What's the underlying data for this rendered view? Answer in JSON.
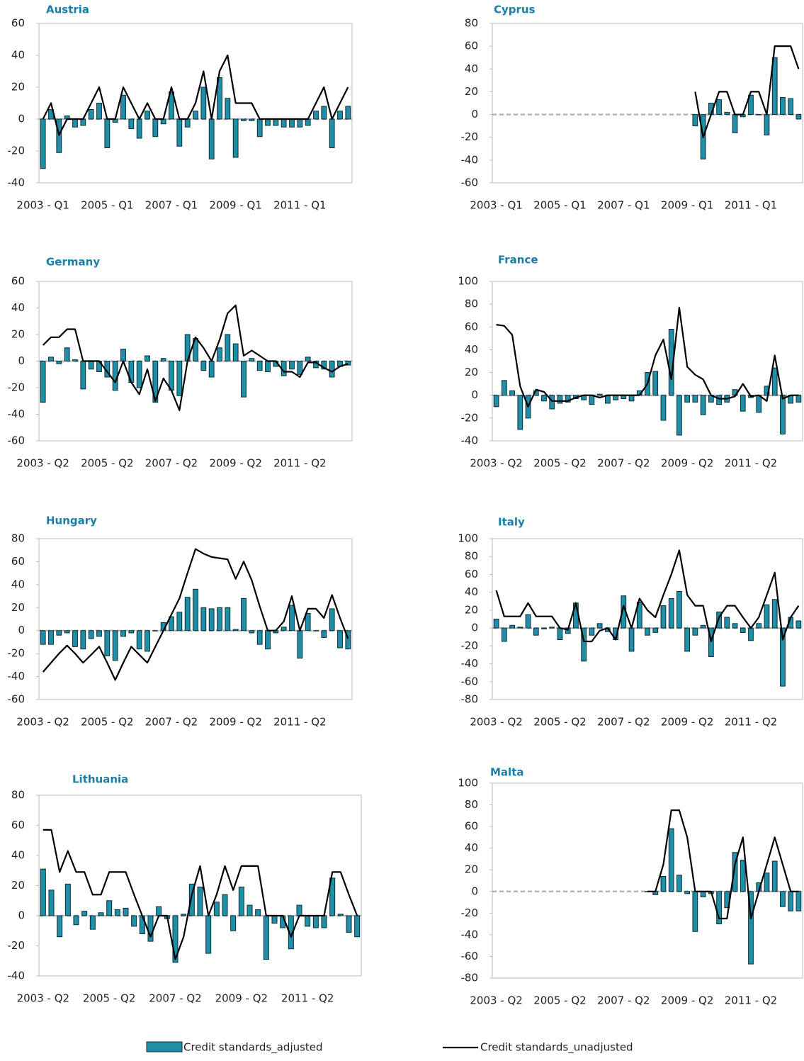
{
  "chart_data": [
    {
      "type": "bar-line",
      "title": "Austria",
      "categories": [
        "2003 - Q1",
        null,
        null,
        null,
        null,
        null,
        null,
        null,
        "2005 - Q1",
        null,
        null,
        null,
        null,
        null,
        null,
        null,
        "2007 - Q1",
        null,
        null,
        null,
        null,
        null,
        null,
        null,
        "2009 - Q1",
        null,
        null,
        null,
        null,
        null,
        null,
        null,
        "2011 - Q1",
        null,
        null,
        null,
        null,
        null,
        null
      ],
      "ylim": [
        -40,
        60
      ],
      "yticks": [
        -40,
        -20,
        0,
        20,
        40,
        60
      ],
      "series": [
        {
          "type": "bar",
          "color": "#1f8fa8",
          "values": [
            -31,
            6,
            -21,
            2,
            -5,
            -4,
            6,
            10,
            -18,
            -2,
            15,
            -6,
            -12,
            5,
            -11,
            -3,
            17,
            -17,
            -5,
            5,
            20,
            -25,
            26,
            13,
            -24,
            -1,
            -1,
            -11,
            -4,
            -4,
            -5,
            -5,
            -5,
            -4,
            5,
            8,
            -18,
            5,
            8
          ]
        },
        {
          "type": "line",
          "color": "#000000",
          "values": [
            0,
            10,
            -10,
            0,
            0,
            0,
            10,
            20,
            0,
            0,
            20,
            10,
            0,
            10,
            0,
            0,
            20,
            0,
            0,
            10,
            30,
            0,
            30,
            40,
            10,
            10,
            10,
            0,
            0,
            0,
            0,
            0,
            0,
            0,
            10,
            20,
            0,
            10,
            20
          ]
        }
      ]
    },
    {
      "type": "bar-line",
      "title": "Cyprus",
      "categories": [
        "2003 - Q1",
        null,
        null,
        null,
        null,
        null,
        null,
        null,
        "2005 - Q1",
        null,
        null,
        null,
        null,
        null,
        null,
        null,
        "2007 - Q1",
        null,
        null,
        null,
        null,
        null,
        null,
        null,
        "2009 - Q1",
        null,
        null,
        null,
        null,
        null,
        null,
        null,
        "2011 - Q1",
        null,
        null,
        null,
        null,
        null,
        null
      ],
      "ylim": [
        -60,
        80
      ],
      "yticks": [
        -60,
        -40,
        -20,
        0,
        20,
        40,
        60,
        80
      ],
      "series": [
        {
          "type": "bar",
          "color": "#1f8fa8",
          "values": [
            null,
            null,
            null,
            null,
            null,
            null,
            null,
            null,
            null,
            null,
            null,
            null,
            null,
            null,
            null,
            null,
            null,
            null,
            null,
            null,
            null,
            null,
            null,
            null,
            null,
            -10,
            -39,
            10,
            13,
            2,
            -16,
            -2,
            17,
            0,
            -18,
            50,
            15,
            14,
            -4
          ]
        },
        {
          "type": "line",
          "color": "#000000",
          "values": [
            null,
            null,
            null,
            null,
            null,
            null,
            null,
            null,
            null,
            null,
            null,
            null,
            null,
            null,
            null,
            null,
            null,
            null,
            null,
            null,
            null,
            null,
            null,
            null,
            null,
            20,
            -20,
            0,
            20,
            20,
            0,
            0,
            20,
            20,
            0,
            60,
            60,
            60,
            40
          ]
        }
      ]
    },
    {
      "type": "bar-line",
      "title": "Germany",
      "categories": [
        "2003 - Q2",
        null,
        null,
        null,
        null,
        null,
        null,
        null,
        "2005 - Q2",
        null,
        null,
        null,
        null,
        null,
        null,
        null,
        "2007 - Q2",
        null,
        null,
        null,
        null,
        null,
        null,
        null,
        "2009 - Q2",
        null,
        null,
        null,
        null,
        null,
        null,
        null,
        "2011 - Q2",
        null,
        null,
        null,
        null,
        null,
        null
      ],
      "ylim": [
        -60,
        60
      ],
      "yticks": [
        -60,
        -40,
        -20,
        0,
        20,
        40,
        60
      ],
      "series": [
        {
          "type": "bar",
          "color": "#1f8fa8",
          "values": [
            -31,
            3,
            -2,
            10,
            1,
            -21,
            -6,
            -8,
            -12,
            -22,
            9,
            -16,
            -20,
            4,
            -31,
            2,
            -22,
            -26,
            20,
            17,
            -7,
            -12,
            10,
            20,
            13,
            -27,
            2,
            -7,
            -8,
            -4,
            -11,
            -6,
            -10,
            3,
            -5,
            -6,
            -12,
            -4,
            -3
          ]
        },
        {
          "type": "line",
          "color": "#000000",
          "values": [
            12,
            18,
            18,
            24,
            24,
            0,
            0,
            0,
            -8,
            -16,
            0,
            -16,
            -25,
            -6,
            -30,
            -13,
            -22,
            -37,
            0,
            18,
            10,
            0,
            16,
            36,
            42,
            4,
            8,
            4,
            0,
            0,
            -8,
            -8,
            -12,
            -1,
            -1,
            -5,
            -8,
            -4,
            -2
          ]
        }
      ]
    },
    {
      "type": "bar-line",
      "title": "France",
      "categories": [
        "2003 - Q2",
        null,
        null,
        null,
        null,
        null,
        null,
        null,
        "2005 - Q2",
        null,
        null,
        null,
        null,
        null,
        null,
        null,
        "2007 - Q2",
        null,
        null,
        null,
        null,
        null,
        null,
        null,
        "2009 - Q2",
        null,
        null,
        null,
        null,
        null,
        null,
        null,
        "2011 - Q2",
        null,
        null,
        null,
        null,
        null,
        null
      ],
      "ylim": [
        -40,
        100
      ],
      "yticks": [
        -40,
        -20,
        0,
        20,
        40,
        60,
        80,
        100
      ],
      "series": [
        {
          "type": "bar",
          "color": "#1f8fa8",
          "values": [
            -10,
            13,
            4,
            -30,
            -20,
            4,
            -5,
            -12,
            -7,
            -6,
            -3,
            -4,
            -8,
            1,
            -7,
            -4,
            -3,
            -5,
            4,
            20,
            21,
            -22,
            58,
            -35,
            -6,
            -6,
            -17,
            -6,
            -8,
            -6,
            5,
            -14,
            -2,
            -15,
            8,
            24,
            -34,
            -7,
            -6
          ]
        },
        {
          "type": "line",
          "color": "#000000",
          "values": [
            62,
            61,
            53,
            8,
            -10,
            5,
            3,
            -5,
            -5,
            -5,
            -2,
            0,
            0,
            -2,
            0,
            0,
            0,
            0,
            0,
            10,
            35,
            49,
            14,
            77,
            25,
            18,
            14,
            0,
            -3,
            -3,
            -1,
            10,
            -1,
            0,
            -5,
            35,
            -3,
            0,
            0
          ]
        }
      ]
    },
    {
      "type": "bar-line",
      "title": "Hungary",
      "categories": [
        "2003 - Q2",
        null,
        null,
        null,
        null,
        null,
        null,
        null,
        "2005 - Q2",
        null,
        null,
        null,
        null,
        null,
        null,
        null,
        "2007 - Q2",
        null,
        null,
        null,
        null,
        null,
        null,
        null,
        "2009 - Q2",
        null,
        null,
        null,
        null,
        null,
        null,
        null,
        "2011 - Q2",
        null,
        null,
        null,
        null,
        null,
        null
      ],
      "ylim": [
        -60,
        80
      ],
      "yticks": [
        -60,
        -40,
        -20,
        0,
        20,
        40,
        60,
        80
      ],
      "series": [
        {
          "type": "bar",
          "color": "#1f8fa8",
          "values": [
            -12,
            -12,
            -4,
            -2,
            -14,
            -16,
            -7,
            -5,
            -22,
            -26,
            -5,
            -2,
            -16,
            -18,
            0,
            7,
            12,
            16,
            29,
            36,
            20,
            19,
            20,
            20,
            1,
            28,
            -2,
            -12,
            -16,
            -2,
            3,
            22,
            -24,
            15,
            0,
            -6,
            19,
            -15,
            -16
          ]
        },
        {
          "type": "line",
          "color": "#000000",
          "values": [
            -36,
            -28,
            -20,
            -13,
            -20,
            -28,
            -21,
            -14,
            -28,
            -43,
            -28,
            -14,
            -21,
            -28,
            -14,
            0,
            14,
            28,
            50,
            71,
            67,
            64,
            63,
            62,
            45,
            60,
            44,
            21,
            0,
            0,
            8,
            30,
            0,
            19,
            19,
            11,
            31,
            11,
            -7
          ]
        }
      ]
    },
    {
      "type": "bar-line",
      "title": "Italy",
      "categories": [
        "2003 - Q2",
        null,
        null,
        null,
        null,
        null,
        null,
        null,
        "2005 - Q2",
        null,
        null,
        null,
        null,
        null,
        null,
        null,
        "2007 - Q2",
        null,
        null,
        null,
        null,
        null,
        null,
        null,
        "2009 - Q2",
        null,
        null,
        null,
        null,
        null,
        null,
        null,
        "2011 - Q2",
        null,
        null,
        null,
        null,
        null,
        null
      ],
      "ylim": [
        -80,
        100
      ],
      "yticks": [
        -80,
        -60,
        -40,
        -20,
        0,
        20,
        40,
        60,
        80,
        100
      ],
      "series": [
        {
          "type": "bar",
          "color": "#1f8fa8",
          "values": [
            10,
            -15,
            3,
            1,
            15,
            -8,
            -1,
            1,
            -13,
            -6,
            28,
            -37,
            -8,
            5,
            -4,
            -13,
            36,
            -26,
            29,
            -8,
            -5,
            25,
            33,
            41,
            -26,
            -8,
            3,
            -32,
            18,
            12,
            5,
            -5,
            -14,
            5,
            26,
            32,
            -65,
            12,
            8
          ]
        },
        {
          "type": "line",
          "color": "#000000",
          "values": [
            42,
            13,
            13,
            13,
            28,
            13,
            13,
            13,
            0,
            -2,
            28,
            -15,
            -15,
            -3,
            0,
            -13,
            25,
            0,
            33,
            20,
            12,
            37,
            60,
            87,
            37,
            25,
            25,
            -15,
            12,
            25,
            25,
            12,
            0,
            12,
            37,
            62,
            -13,
            12,
            25
          ]
        }
      ]
    },
    {
      "type": "bar-line",
      "title": "Lithuania",
      "categories": [
        "2003 - Q2",
        null,
        null,
        null,
        null,
        null,
        null,
        null,
        "2005 - Q2",
        null,
        null,
        null,
        null,
        null,
        null,
        null,
        "2007 - Q2",
        null,
        null,
        null,
        null,
        null,
        null,
        null,
        "2009 - Q2",
        null,
        null,
        null,
        null,
        null,
        null,
        null,
        "2011 - Q2",
        null,
        null,
        null,
        null,
        null,
        null
      ],
      "ylim": [
        -40,
        80
      ],
      "yticks": [
        -40,
        -20,
        0,
        20,
        40,
        60,
        80
      ],
      "series": [
        {
          "type": "bar",
          "color": "#1f8fa8",
          "values": [
            31,
            17,
            -14,
            21,
            -6,
            3,
            -9,
            2,
            10,
            4,
            5,
            -7,
            -12,
            -17,
            6,
            -2,
            -31,
            1,
            21,
            19,
            -25,
            9,
            14,
            -10,
            19,
            7,
            4,
            -29,
            -5,
            -8,
            -22,
            7,
            -7,
            -8,
            -8,
            25,
            1,
            -11,
            -14
          ]
        },
        {
          "type": "line",
          "color": "#000000",
          "values": [
            57,
            57,
            29,
            43,
            29,
            29,
            14,
            14,
            29,
            29,
            29,
            14,
            0,
            -14,
            0,
            0,
            -29,
            -14,
            14,
            33,
            0,
            14,
            33,
            17,
            33,
            33,
            33,
            0,
            0,
            0,
            -14,
            0,
            0,
            0,
            0,
            29,
            29,
            14,
            0
          ]
        }
      ]
    },
    {
      "type": "bar-line",
      "title": "Malta",
      "categories": [
        "2003 - Q2",
        null,
        null,
        null,
        null,
        null,
        null,
        null,
        "2005 - Q2",
        null,
        null,
        null,
        null,
        null,
        null,
        null,
        "2007 - Q2",
        null,
        null,
        null,
        null,
        null,
        null,
        null,
        "2009 - Q2",
        null,
        null,
        null,
        null,
        null,
        null,
        null,
        "2011 - Q2",
        null,
        null,
        null,
        null,
        null,
        null
      ],
      "ylim": [
        -80,
        100
      ],
      "yticks": [
        -80,
        -60,
        -40,
        -20,
        0,
        20,
        40,
        60,
        80,
        100
      ],
      "series": [
        {
          "type": "bar",
          "color": "#1f8fa8",
          "values": [
            null,
            null,
            null,
            null,
            null,
            null,
            null,
            null,
            null,
            null,
            null,
            null,
            null,
            null,
            null,
            null,
            null,
            null,
            null,
            0,
            -3,
            14,
            58,
            15,
            -2,
            -37,
            -5,
            -2,
            -30,
            -15,
            36,
            29,
            -67,
            8,
            17,
            28,
            -14,
            -18,
            -18
          ]
        },
        {
          "type": "line",
          "color": "#000000",
          "values": [
            null,
            null,
            null,
            null,
            null,
            null,
            null,
            null,
            null,
            null,
            null,
            null,
            null,
            null,
            null,
            null,
            null,
            null,
            null,
            0,
            0,
            25,
            75,
            75,
            50,
            0,
            0,
            0,
            -25,
            -25,
            25,
            50,
            -25,
            0,
            25,
            50,
            25,
            0,
            0
          ]
        }
      ]
    }
  ],
  "legend": [
    {
      "name": "Credit standards_adjusted",
      "color": "#1f8fa8"
    },
    {
      "name": "Credit standards_unadjusted",
      "color": "#000000"
    }
  ]
}
